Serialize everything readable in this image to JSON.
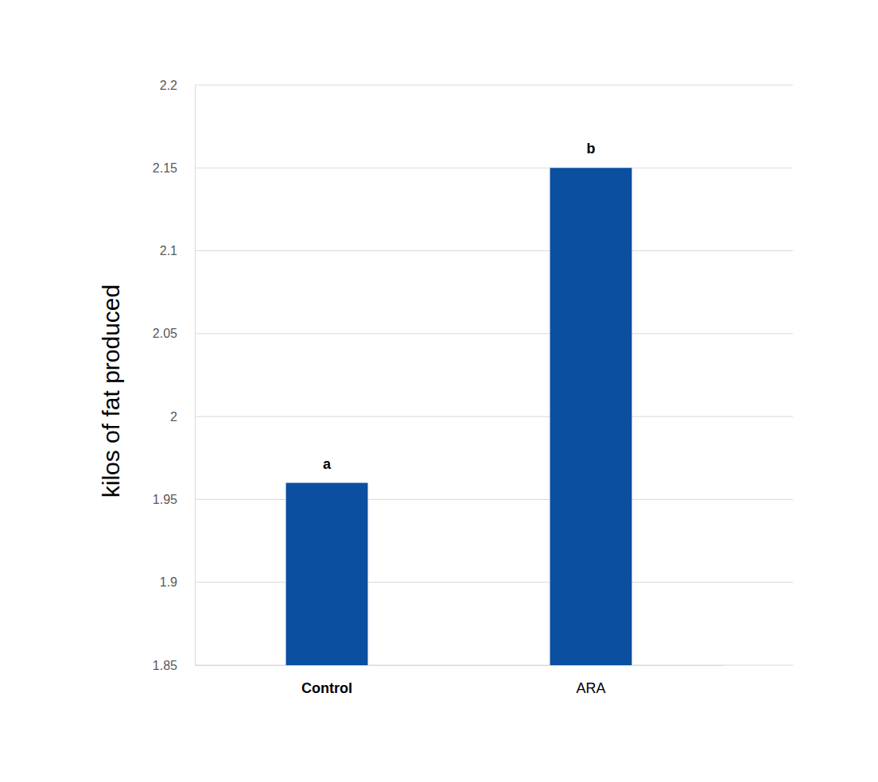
{
  "chart_data": {
    "type": "bar",
    "categories": [
      "Control",
      "ARA"
    ],
    "values": [
      1.96,
      2.15
    ],
    "annotations": [
      "a",
      "b"
    ],
    "y_label": "kilos of fat produced",
    "color": "#0a4fa0",
    "ylim": [
      1.85,
      2.2
    ],
    "yticks": [
      1.85,
      1.9,
      1.95,
      2,
      2.05,
      2.1,
      2.15,
      2.2
    ],
    "grid": true
  }
}
